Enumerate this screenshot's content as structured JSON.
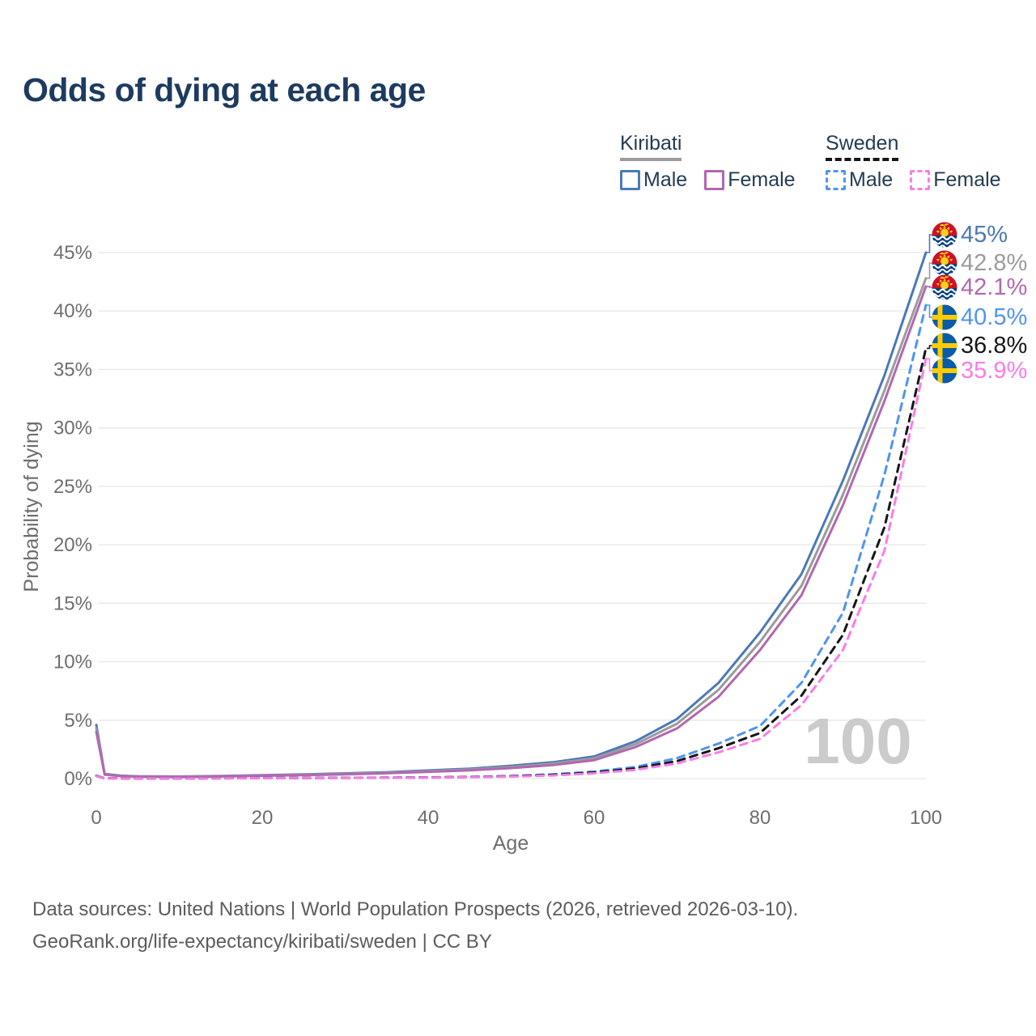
{
  "title": "Odds of dying at each age",
  "watermark": "100",
  "legend": {
    "groups": [
      {
        "name": "Kiribati",
        "line_style": "solid",
        "underline_color": "#9B9B9B",
        "items": [
          {
            "label": "Male",
            "color": "#4B79B7"
          },
          {
            "label": "Female",
            "color": "#B168AF"
          }
        ]
      },
      {
        "name": "Sweden",
        "line_style": "dashed",
        "underline_color": "#161616",
        "items": [
          {
            "label": "Male",
            "color": "#4E94F1"
          },
          {
            "label": "Female",
            "color": "#FB7CE8"
          }
        ]
      }
    ]
  },
  "axes": {
    "x": {
      "label": "Age",
      "tick_values": [
        0,
        20,
        40,
        60,
        80,
        100
      ],
      "tick_labels": [
        "0",
        "20",
        "40",
        "60",
        "80",
        "100"
      ]
    },
    "y": {
      "label": "Probability of dying",
      "tick_values": [
        0,
        5,
        10,
        15,
        20,
        25,
        30,
        35,
        40,
        45
      ],
      "tick_labels": [
        "0%",
        "5%",
        "10%",
        "15%",
        "20%",
        "25%",
        "30%",
        "35%",
        "40%",
        "45%"
      ]
    }
  },
  "end_labels": [
    {
      "value": "45%",
      "color": "#4B79B7",
      "flag": "kiribati"
    },
    {
      "value": "42.8%",
      "color": "#9B9B9B",
      "flag": "kiribati"
    },
    {
      "value": "42.1%",
      "color": "#B168AF",
      "flag": "kiribati"
    },
    {
      "value": "40.5%",
      "color": "#4E94F1",
      "flag": "sweden"
    },
    {
      "value": "36.8%",
      "color": "#161616",
      "flag": "sweden"
    },
    {
      "value": "35.9%",
      "color": "#FB7CE8",
      "flag": "sweden"
    }
  ],
  "footer": {
    "line1": "Data sources: United Nations | World Population Prospects (2026, retrieved 2026-03-10).",
    "line2": "GeoRank.org/life-expectancy/kiribati/sweden | CC BY"
  },
  "flag_colors": {
    "kiribati_red": "#CE1126",
    "kiribati_blue": "#003F87",
    "kiribati_gold": "#FCD116",
    "sweden_blue": "#0A5BA8",
    "sweden_yellow": "#FECC02"
  },
  "chart_data": {
    "type": "line",
    "title": "Odds of dying at each age",
    "xlabel": "Age",
    "ylabel": "Probability of dying",
    "xlim": [
      0,
      100
    ],
    "ylim": [
      0,
      46
    ],
    "grid": "horizontal",
    "legend_position": "top-right",
    "unit": "percent",
    "series": [
      {
        "id": "kiribati-male",
        "name": "Kiribati Male",
        "color": "#4B79B7",
        "dashed": false,
        "end_value": 45.0,
        "points": [
          [
            0,
            4.6
          ],
          [
            1,
            0.4
          ],
          [
            3,
            0.25
          ],
          [
            5,
            0.2
          ],
          [
            10,
            0.18
          ],
          [
            15,
            0.22
          ],
          [
            20,
            0.3
          ],
          [
            25,
            0.36
          ],
          [
            30,
            0.45
          ],
          [
            35,
            0.55
          ],
          [
            40,
            0.7
          ],
          [
            45,
            0.85
          ],
          [
            50,
            1.1
          ],
          [
            55,
            1.4
          ],
          [
            60,
            1.9
          ],
          [
            65,
            3.2
          ],
          [
            70,
            5.1
          ],
          [
            75,
            8.2
          ],
          [
            80,
            12.5
          ],
          [
            85,
            17.5
          ],
          [
            90,
            25.5
          ],
          [
            95,
            34.5
          ],
          [
            100,
            45
          ]
        ]
      },
      {
        "id": "kiribati-total",
        "name": "Kiribati (both sexes)",
        "color": "#9B9B9B",
        "dashed": false,
        "end_value": 42.8,
        "points": [
          [
            0,
            4.3
          ],
          [
            1,
            0.37
          ],
          [
            3,
            0.23
          ],
          [
            5,
            0.19
          ],
          [
            10,
            0.16
          ],
          [
            15,
            0.2
          ],
          [
            20,
            0.27
          ],
          [
            25,
            0.33
          ],
          [
            30,
            0.41
          ],
          [
            35,
            0.5
          ],
          [
            40,
            0.64
          ],
          [
            45,
            0.78
          ],
          [
            50,
            1.0
          ],
          [
            55,
            1.28
          ],
          [
            60,
            1.74
          ],
          [
            65,
            2.95
          ],
          [
            70,
            4.7
          ],
          [
            75,
            7.6
          ],
          [
            80,
            11.7
          ],
          [
            85,
            16.5
          ],
          [
            90,
            24.3
          ],
          [
            95,
            33.2
          ],
          [
            100,
            42.8
          ]
        ]
      },
      {
        "id": "kiribati-female",
        "name": "Kiribati Female",
        "color": "#B168AF",
        "dashed": false,
        "end_value": 42.1,
        "points": [
          [
            0,
            4.0
          ],
          [
            1,
            0.34
          ],
          [
            3,
            0.21
          ],
          [
            5,
            0.17
          ],
          [
            10,
            0.14
          ],
          [
            15,
            0.18
          ],
          [
            20,
            0.24
          ],
          [
            25,
            0.3
          ],
          [
            30,
            0.37
          ],
          [
            35,
            0.46
          ],
          [
            40,
            0.58
          ],
          [
            45,
            0.71
          ],
          [
            50,
            0.9
          ],
          [
            55,
            1.16
          ],
          [
            60,
            1.58
          ],
          [
            65,
            2.7
          ],
          [
            70,
            4.3
          ],
          [
            75,
            7.0
          ],
          [
            80,
            11.0
          ],
          [
            85,
            15.7
          ],
          [
            90,
            23.4
          ],
          [
            95,
            32.3
          ],
          [
            100,
            42.1
          ]
        ]
      },
      {
        "id": "sweden-male",
        "name": "Sweden Male",
        "color": "#4E94F1",
        "dashed": true,
        "end_value": 40.5,
        "points": [
          [
            0,
            0.25
          ],
          [
            1,
            0.03
          ],
          [
            5,
            0.015
          ],
          [
            10,
            0.015
          ],
          [
            15,
            0.03
          ],
          [
            20,
            0.05
          ],
          [
            25,
            0.06
          ],
          [
            30,
            0.07
          ],
          [
            35,
            0.085
          ],
          [
            40,
            0.11
          ],
          [
            45,
            0.15
          ],
          [
            50,
            0.23
          ],
          [
            55,
            0.37
          ],
          [
            60,
            0.6
          ],
          [
            65,
            1.0
          ],
          [
            70,
            1.75
          ],
          [
            75,
            3.0
          ],
          [
            80,
            4.5
          ],
          [
            85,
            8.2
          ],
          [
            90,
            14.2
          ],
          [
            95,
            26.0
          ],
          [
            100,
            40.5
          ]
        ]
      },
      {
        "id": "sweden-total",
        "name": "Sweden (both sexes)",
        "color": "#161616",
        "dashed": true,
        "end_value": 36.8,
        "points": [
          [
            0,
            0.22
          ],
          [
            1,
            0.027
          ],
          [
            5,
            0.013
          ],
          [
            10,
            0.013
          ],
          [
            15,
            0.026
          ],
          [
            20,
            0.04
          ],
          [
            25,
            0.05
          ],
          [
            30,
            0.06
          ],
          [
            35,
            0.075
          ],
          [
            40,
            0.095
          ],
          [
            45,
            0.13
          ],
          [
            50,
            0.2
          ],
          [
            55,
            0.32
          ],
          [
            60,
            0.52
          ],
          [
            65,
            0.87
          ],
          [
            70,
            1.5
          ],
          [
            75,
            2.6
          ],
          [
            80,
            3.9
          ],
          [
            85,
            7.1
          ],
          [
            90,
            12.3
          ],
          [
            95,
            21.5
          ],
          [
            100,
            36.8
          ]
        ]
      },
      {
        "id": "sweden-female",
        "name": "Sweden Female",
        "color": "#FB7CE8",
        "dashed": true,
        "end_value": 35.9,
        "points": [
          [
            0,
            0.2
          ],
          [
            1,
            0.022
          ],
          [
            5,
            0.012
          ],
          [
            10,
            0.012
          ],
          [
            15,
            0.022
          ],
          [
            20,
            0.032
          ],
          [
            25,
            0.042
          ],
          [
            30,
            0.052
          ],
          [
            35,
            0.065
          ],
          [
            40,
            0.085
          ],
          [
            45,
            0.115
          ],
          [
            50,
            0.17
          ],
          [
            55,
            0.27
          ],
          [
            60,
            0.45
          ],
          [
            65,
            0.75
          ],
          [
            70,
            1.3
          ],
          [
            75,
            2.25
          ],
          [
            80,
            3.4
          ],
          [
            85,
            6.3
          ],
          [
            90,
            11.0
          ],
          [
            95,
            19.5
          ],
          [
            100,
            35.9
          ]
        ]
      }
    ]
  }
}
